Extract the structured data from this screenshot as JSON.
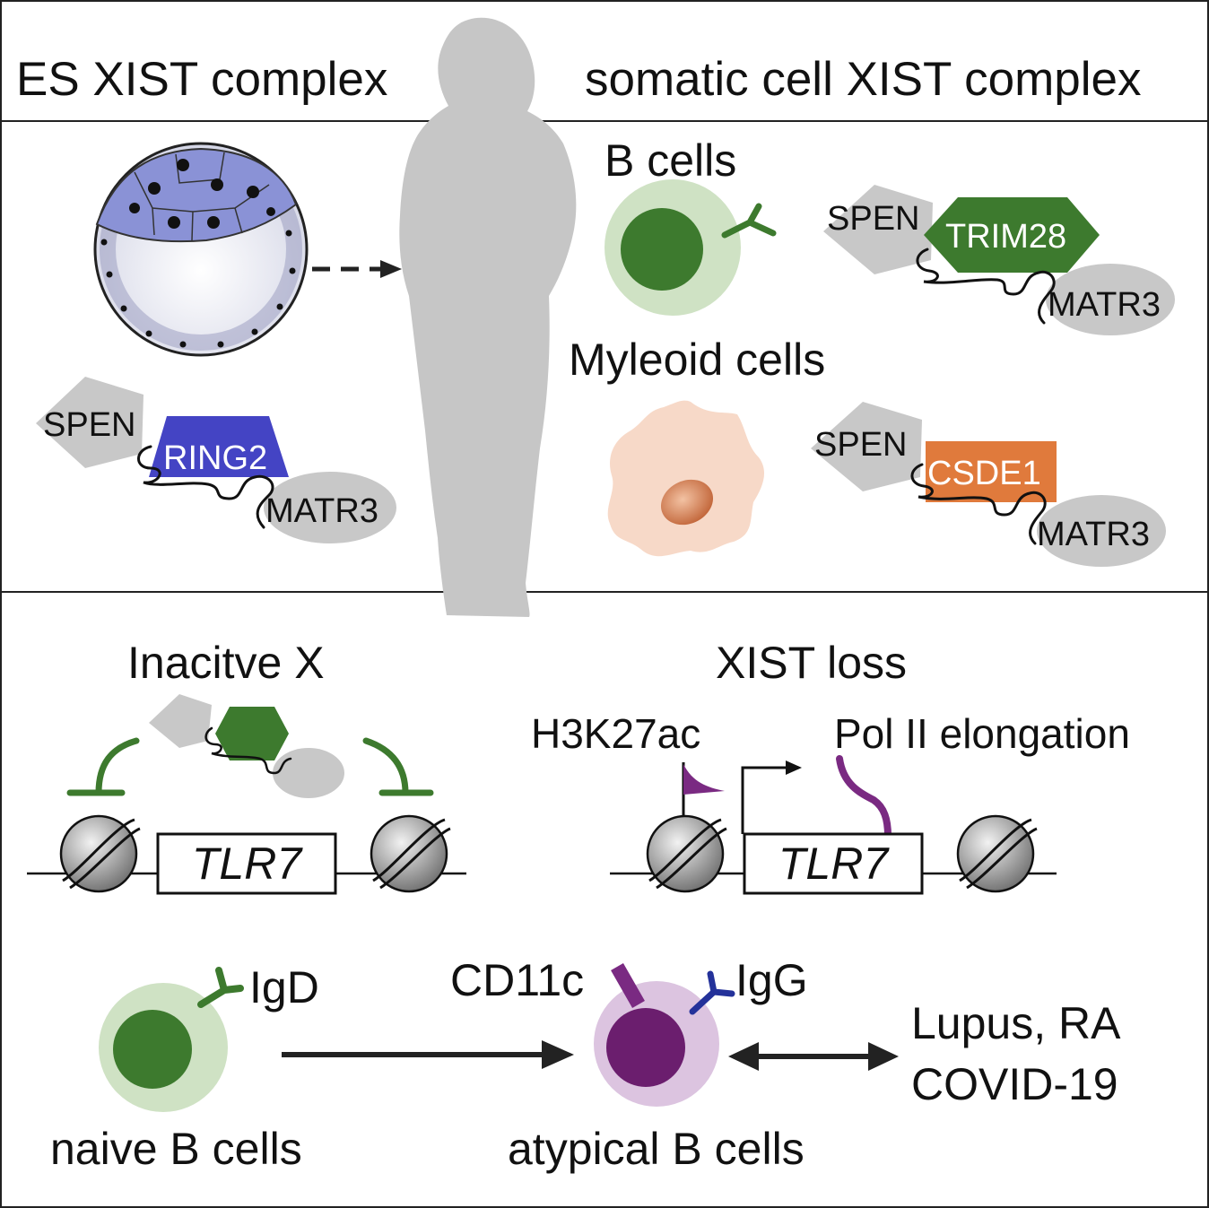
{
  "header": {
    "left_title": "ES XIST complex",
    "right_title": "somatic cell XIST complex"
  },
  "es_complex": {
    "proteins": [
      "SPEN",
      "RING2",
      "MATR3"
    ]
  },
  "b_cells": {
    "title": "B cells",
    "proteins": [
      "SPEN",
      "TRIM28",
      "MATR3"
    ]
  },
  "myeloid_cells": {
    "title": "Myleoid cells",
    "proteins": [
      "SPEN",
      "CSDE1",
      "MATR3"
    ]
  },
  "inactive_x": {
    "title": "Inacitve X",
    "gene": "TLR7"
  },
  "xist_loss": {
    "title": "XIST loss",
    "mark_label": "H3K27ac",
    "elongation_label": "Pol II elongation",
    "gene": "TLR7"
  },
  "bottom": {
    "naive_marker": "IgD",
    "naive_label": "naive B cells",
    "atypical_marker_1": "CD11c",
    "atypical_marker_2": "IgG",
    "atypical_label": "atypical B cells",
    "diseases_line1": "Lupus, RA",
    "diseases_line2": "COVID-19"
  },
  "colors": {
    "ring2": "#4444c4",
    "trim28": "#3d7a2e",
    "csde1": "#e07a3c",
    "gray_protein": "#c8c8c8",
    "naive_outer": "#cfe2c4",
    "naive_inner": "#3d7a2e",
    "atypical_outer": "#dcc4e0",
    "atypical_inner": "#6b1e6e",
    "purple": "#7a2a82",
    "myeloid_outer": "#f7d9c8",
    "myeloid_nucleus": "#d0764a",
    "blastocyst_icm": "#8a92d6",
    "silhouette": "#c6c6c6"
  }
}
